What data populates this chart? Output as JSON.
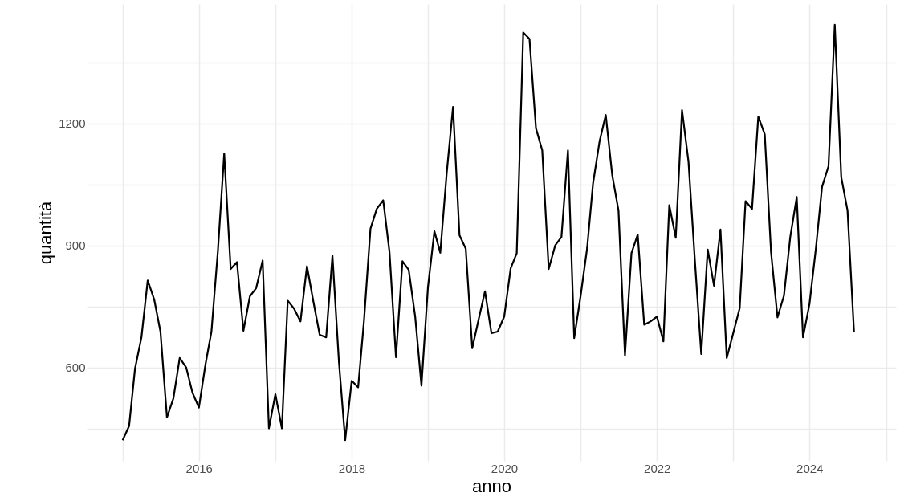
{
  "chart_data": {
    "type": "line",
    "xlabel": "anno",
    "ylabel": "quantità",
    "x": [
      "2015-01",
      "2015-02",
      "2015-03",
      "2015-04",
      "2015-05",
      "2015-06",
      "2015-07",
      "2015-08",
      "2015-09",
      "2015-10",
      "2015-11",
      "2015-12",
      "2016-01",
      "2016-02",
      "2016-03",
      "2016-04",
      "2016-05",
      "2016-06",
      "2016-07",
      "2016-08",
      "2016-09",
      "2016-10",
      "2016-11",
      "2016-12",
      "2017-01",
      "2017-02",
      "2017-03",
      "2017-04",
      "2017-05",
      "2017-06",
      "2017-07",
      "2017-08",
      "2017-09",
      "2017-10",
      "2017-11",
      "2017-12",
      "2018-01",
      "2018-02",
      "2018-03",
      "2018-04",
      "2018-05",
      "2018-06",
      "2018-07",
      "2018-08",
      "2018-09",
      "2018-10",
      "2018-11",
      "2018-12",
      "2019-01",
      "2019-02",
      "2019-03",
      "2019-04",
      "2019-05",
      "2019-06",
      "2019-07",
      "2019-08",
      "2019-09",
      "2019-10",
      "2019-11",
      "2019-12",
      "2020-01",
      "2020-02",
      "2020-03",
      "2020-04",
      "2020-05",
      "2020-06",
      "2020-07",
      "2020-08",
      "2020-09",
      "2020-10",
      "2020-11",
      "2020-12",
      "2021-01",
      "2021-02",
      "2021-03",
      "2021-04",
      "2021-05",
      "2021-06",
      "2021-07",
      "2021-08",
      "2021-09",
      "2021-10",
      "2021-11",
      "2021-12",
      "2022-01",
      "2022-02",
      "2022-03",
      "2022-04",
      "2022-05",
      "2022-06",
      "2022-07",
      "2022-08",
      "2022-09",
      "2022-10",
      "2022-11",
      "2022-12",
      "2023-01",
      "2023-02",
      "2023-03",
      "2023-04",
      "2023-05",
      "2023-06",
      "2023-07",
      "2023-08",
      "2023-09",
      "2023-10",
      "2023-11",
      "2023-12",
      "2024-01",
      "2024-02",
      "2024-03",
      "2024-04",
      "2024-05",
      "2024-06",
      "2024-07",
      "2024-08"
    ],
    "series": [
      {
        "color": "#000000",
        "values": [
          421,
          456,
          596,
          674,
          814,
          767,
          688,
          477,
          524,
          623,
          600,
          538,
          501,
          606,
          688,
          888,
          1126,
          842,
          859,
          690,
          775,
          795,
          863,
          450,
          534,
          450,
          764,
          744,
          713,
          849,
          764,
          680,
          674,
          875,
          614,
          421,
          567,
          551,
          715,
          941,
          990,
          1011,
          884,
          625,
          861,
          840,
          725,
          555,
          797,
          935,
          882,
          1079,
          1241,
          925,
          892,
          647,
          719,
          787,
          684,
          688,
          725,
          844,
          881,
          1424,
          1408,
          1188,
          1134,
          842,
          900,
          921,
          1134,
          672,
          777,
          894,
          1052,
          1155,
          1221,
          1073,
          986,
          629,
          881,
          927,
          705,
          713,
          725,
          664,
          999,
          919,
          1233,
          1106,
          867,
          633,
          890,
          801,
          939,
          623,
          684,
          746,
          1009,
          990,
          1217,
          1173,
          884,
          723,
          777,
          921,
          1019,
          674,
          756,
          894,
          1044,
          1095,
          1443,
          1068,
          986,
          688
        ]
      }
    ],
    "xlim": [
      "2014-07-13",
      "2025-02-18"
    ],
    "xticks": [
      {
        "value": "2015",
        "label": null
      },
      {
        "value": "2016",
        "label": "2016"
      },
      {
        "value": "2017",
        "label": null
      },
      {
        "value": "2018",
        "label": "2018"
      },
      {
        "value": "2019",
        "label": null
      },
      {
        "value": "2020",
        "label": "2020"
      },
      {
        "value": "2021",
        "label": null
      },
      {
        "value": "2022",
        "label": "2022"
      },
      {
        "value": "2023",
        "label": null
      },
      {
        "value": "2024",
        "label": "2024"
      },
      {
        "value": "2025",
        "label": null
      }
    ],
    "ylim": [
      370,
      1494
    ],
    "yticks": [
      {
        "value": 450,
        "label": null
      },
      600,
      {
        "value": 750,
        "label": null
      },
      900,
      {
        "value": 1050,
        "label": null
      },
      1200,
      {
        "value": 1350,
        "label": null
      }
    ],
    "grid": true,
    "line_style": "solid",
    "marker": "none"
  }
}
